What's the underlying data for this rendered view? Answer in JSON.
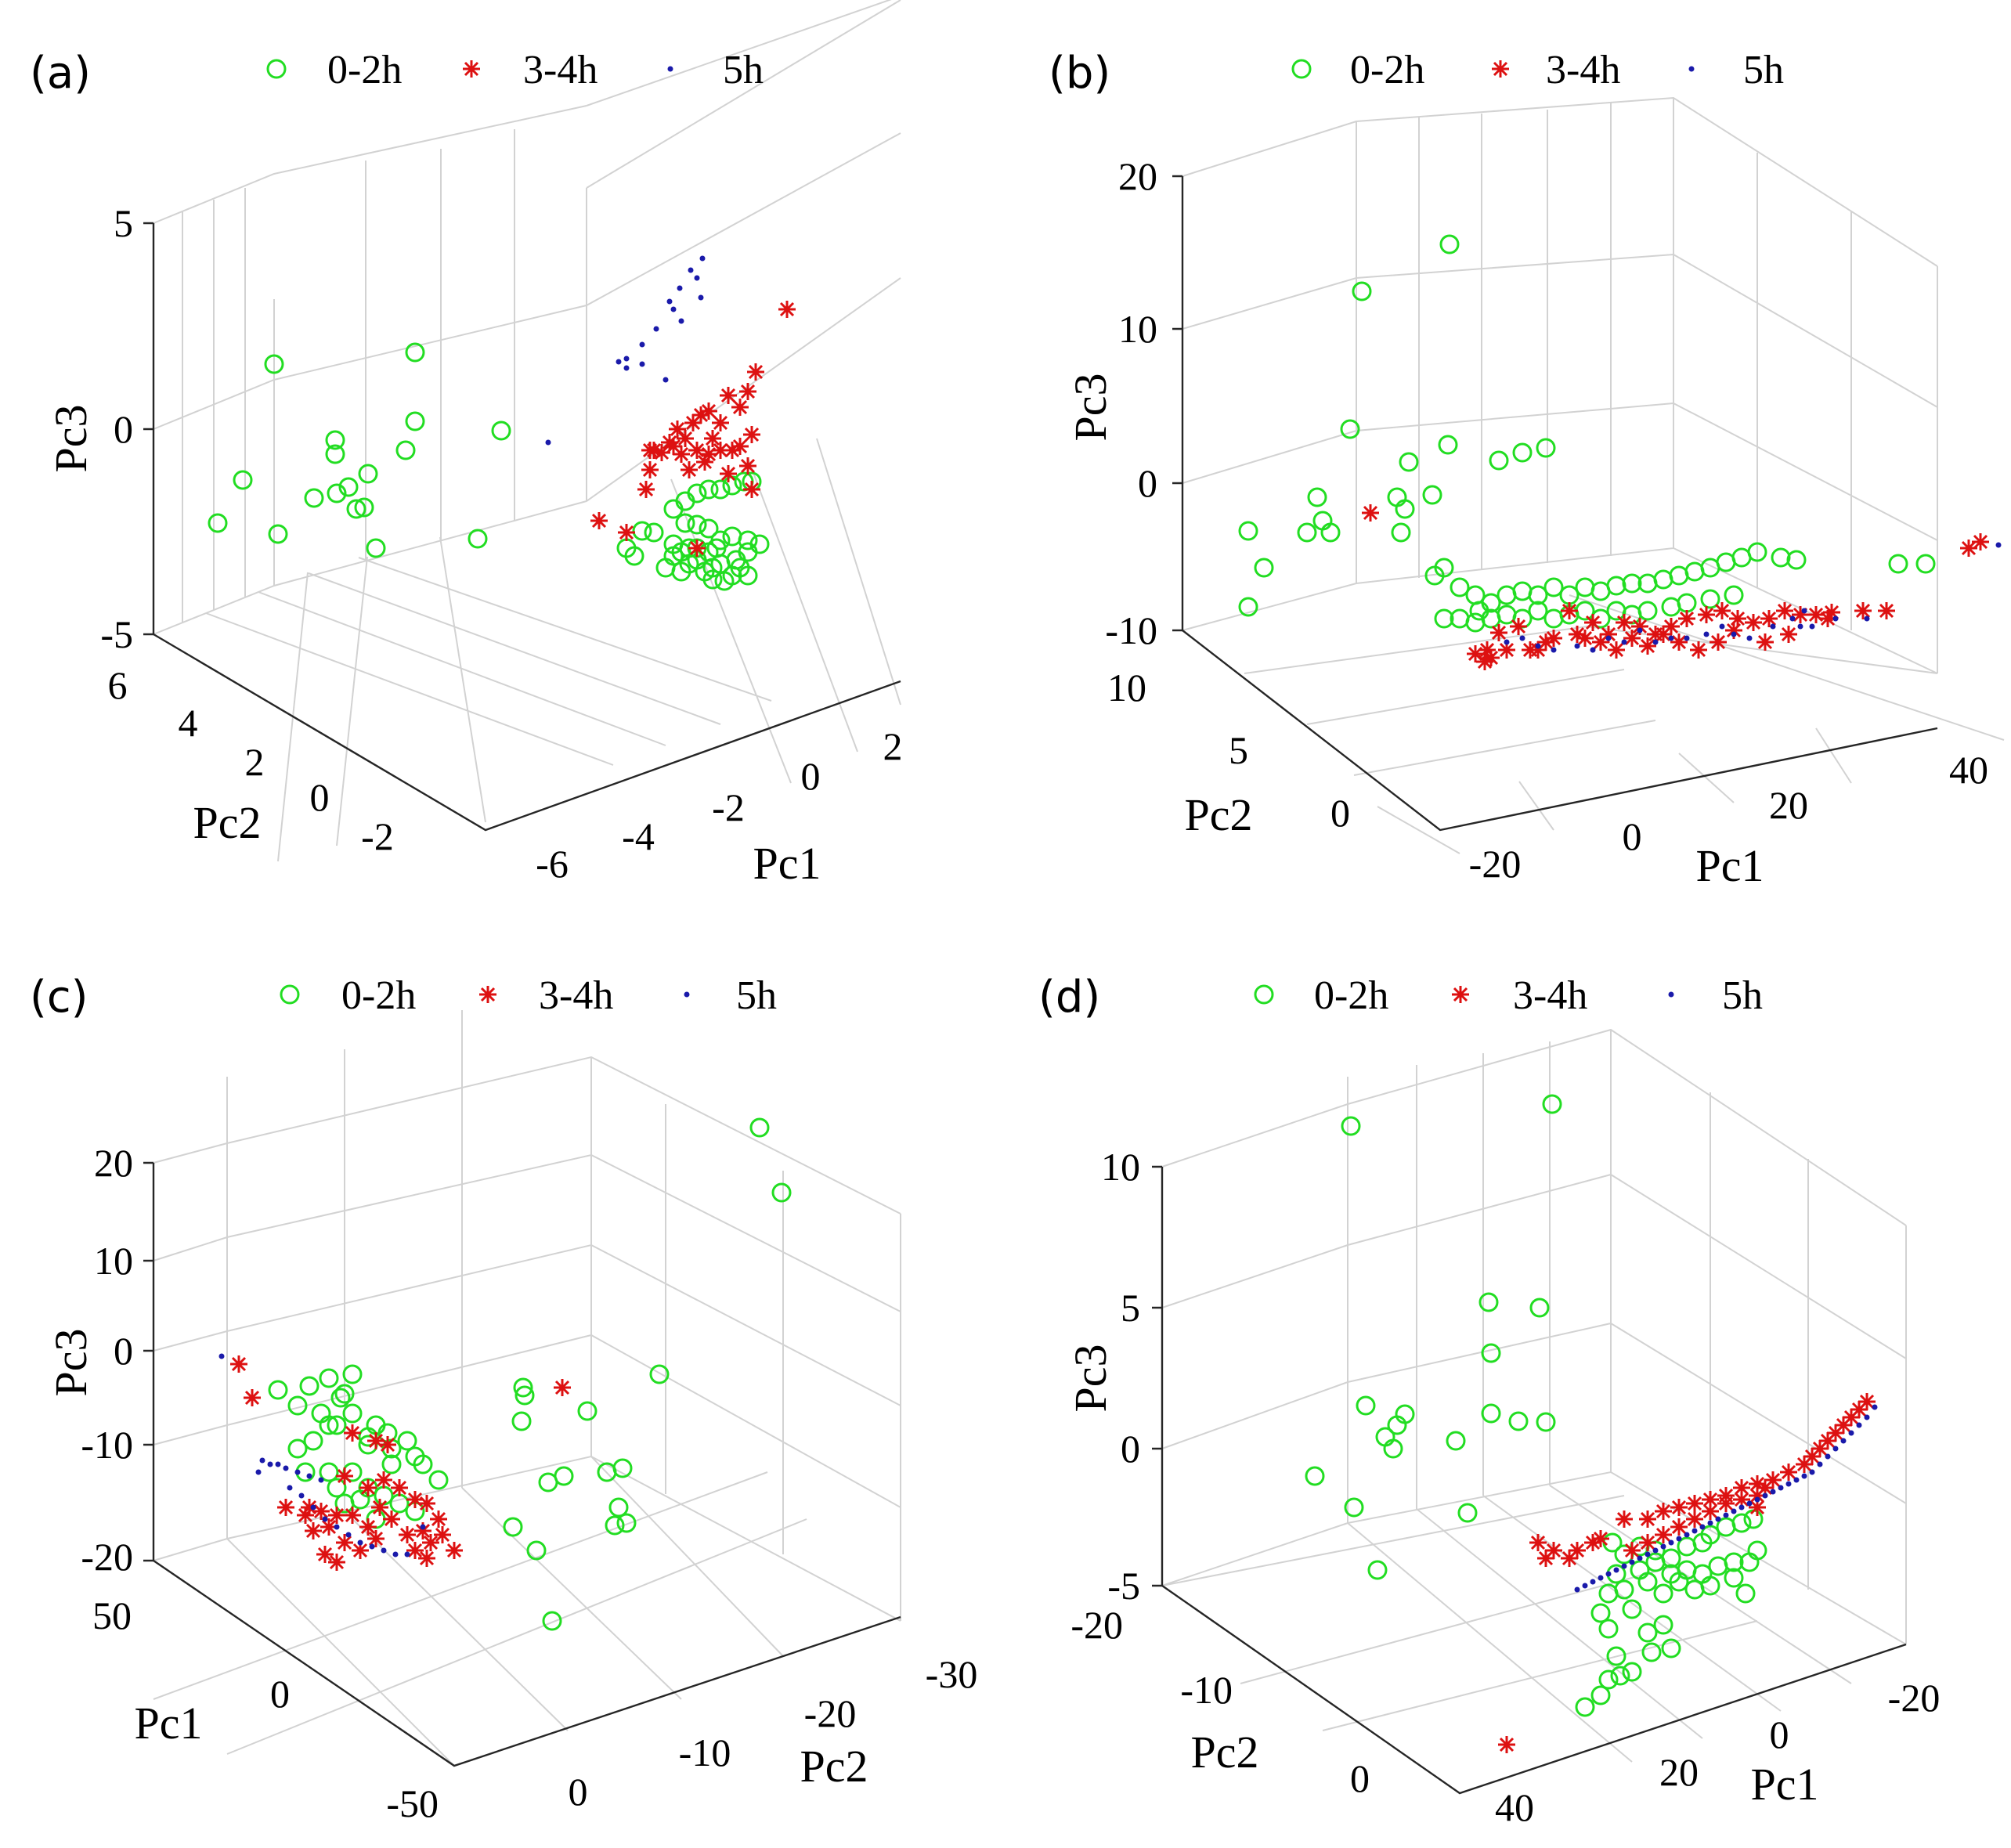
{
  "legend": [
    {
      "label": "0-2h",
      "marker": "circle",
      "color": "#22dd22"
    },
    {
      "label": "3-4h",
      "marker": "asterisk",
      "color": "#dd1111"
    },
    {
      "label": "5h",
      "marker": "dot",
      "color": "#1a1aaa"
    }
  ],
  "chart_data": [
    {
      "type": "scatter",
      "panel_label": "(a)",
      "axes": {
        "vertical": "Pc3",
        "depth": "Pc2",
        "horizontal": "Pc1"
      },
      "zlim": [
        -5,
        5
      ],
      "z_ticks": [
        "-5",
        "0",
        "5"
      ],
      "depth_ticks": [
        "6",
        "4",
        "2",
        "0",
        "-2"
      ],
      "horiz_ticks": [
        "-6",
        "-4",
        "-2",
        "0",
        "2"
      ],
      "grid": true,
      "legend_position": "top"
    },
    {
      "type": "scatter",
      "panel_label": "(b)",
      "axes": {
        "vertical": "Pc3",
        "depth": "Pc2",
        "horizontal": "Pc1"
      },
      "zlim": [
        -10,
        20
      ],
      "z_ticks": [
        "-10",
        "0",
        "10",
        "20"
      ],
      "depth_ticks": [
        "10",
        "5",
        "0"
      ],
      "horiz_ticks": [
        "-20",
        "0",
        "20",
        "40"
      ],
      "grid": true,
      "legend_position": "top"
    },
    {
      "type": "scatter",
      "panel_label": "(c)",
      "axes": {
        "vertical": "Pc3",
        "depth": "Pc1",
        "horizontal": "Pc2"
      },
      "zlim": [
        -20,
        20
      ],
      "z_ticks": [
        "-20",
        "-10",
        "0",
        "10",
        "20"
      ],
      "depth_ticks": [
        "50",
        "0",
        "-50"
      ],
      "horiz_ticks": [
        "0",
        "-10",
        "-20",
        "-30"
      ],
      "grid": true,
      "legend_position": "top"
    },
    {
      "type": "scatter",
      "panel_label": "(d)",
      "axes": {
        "vertical": "Pc3",
        "depth": "Pc2",
        "horizontal": "Pc1"
      },
      "zlim": [
        -5,
        10
      ],
      "z_ticks": [
        "-5",
        "0",
        "5",
        "10"
      ],
      "depth_ticks": [
        "-20",
        "-10",
        "0"
      ],
      "horiz_ticks": [
        "40",
        "20",
        "0",
        "-20"
      ],
      "grid": true,
      "legend_position": "top"
    }
  ]
}
